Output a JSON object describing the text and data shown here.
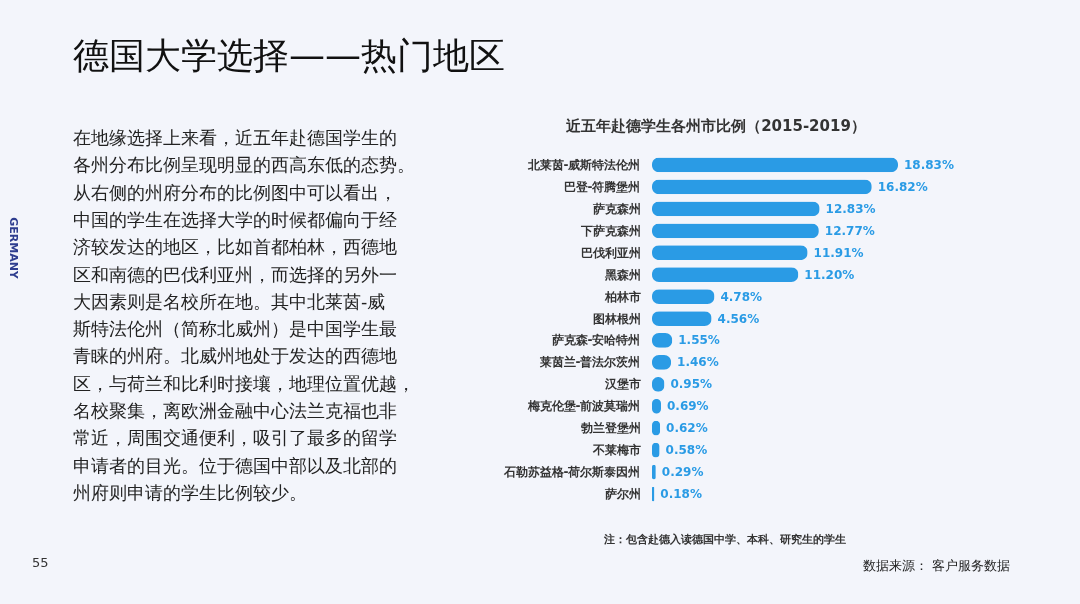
{
  "chart_data": {
    "type": "bar",
    "orientation": "horizontal",
    "title": "德国大学选择——热门地区",
    "subtitle": "近五年赴德学生各州市比例（2015-2019）",
    "categories": [
      "北莱茵-威斯特法伦州",
      "巴登-符腾堡州",
      "萨克森州",
      "下萨克森州",
      "巴伐利亚州",
      "黑森州",
      "柏林市",
      "图林根州",
      "萨克森-安哈特州",
      "莱茵兰-普法尔茨州",
      "汉堡市",
      "梅克伦堡-前波莫瑞州",
      "勃兰登堡州",
      "不莱梅市",
      "石勒苏益格-荷尔斯泰因州",
      "萨尔州"
    ],
    "values": [
      18.83,
      16.82,
      12.83,
      12.77,
      11.91,
      11.2,
      4.78,
      4.56,
      1.55,
      1.46,
      0.95,
      0.69,
      0.62,
      0.58,
      0.29,
      0.18
    ],
    "value_labels": [
      "18.83%",
      "16.82%",
      "12.83%",
      "12.77%",
      "11.91%",
      "11.20%",
      "4.78%",
      "4.56%",
      "1.55%",
      "1.46%",
      "0.95%",
      "0.69%",
      "0.62%",
      "0.58%",
      "0.29%",
      "0.18%"
    ],
    "color": "#2a9be5",
    "annotations": [
      "在地缘选择上来看，近五年赴德国学生的各州分布比例呈现明显的西高东低的态势。从右侧的州府分布的比例图中可以看出，中国的学生在选择大学的时候都偏向于经济较发达的地区，比如首都柏林，西德地区和南德的巴伐利亚州，而选择的另外一大因素则是名校所在地。其中北莱茵-威斯特法伦州（简称北威州）是中国学生最青睐的州府。北威州地处于发达的西德地区，与荷兰和比利时接壤，地理位置优越，名校聚集，离欧洲金融中心法兰克福也非常近，周围交通便利，吸引了最多的留学申请者的目光。位于德国中部以及北部的州府则申请的学生比例较少。",
      "注：包含赴德入读德国中学、本科、研究生的学生",
      "数据来源： 客户服务数据",
      "55",
      "GERMANY"
    ]
  }
}
